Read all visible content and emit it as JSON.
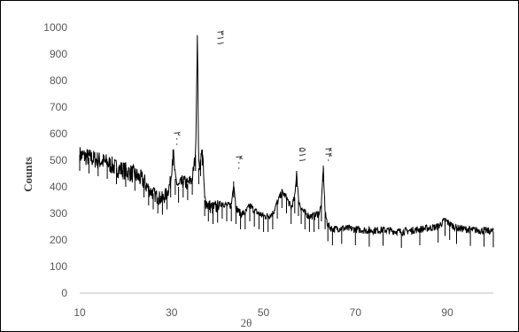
{
  "chart_data": {
    "type": "line",
    "title": "",
    "xlabel": "2θ",
    "ylabel": "Counts",
    "xlim": [
      10,
      100
    ],
    "ylim": [
      0,
      1000
    ],
    "xticks": [
      10,
      30,
      50,
      70,
      90
    ],
    "yticks": [
      0,
      100,
      200,
      300,
      400,
      500,
      600,
      700,
      800,
      900,
      1000
    ],
    "grid": false,
    "legend": "none",
    "line_color": "#000000",
    "series": [
      {
        "name": "",
        "x": [
          10,
          12,
          14,
          16,
          18,
          20,
          22,
          24,
          25,
          26,
          27,
          28,
          29,
          29.8,
          30.3,
          30.8,
          31.5,
          32.5,
          33.5,
          34.5,
          35.2,
          35.6,
          35.9,
          36.3,
          36.7,
          37.2,
          38,
          39,
          40,
          41,
          42,
          43,
          43.5,
          44,
          45,
          46,
          47,
          48,
          49,
          50,
          51,
          52,
          53,
          54,
          55,
          56,
          56.8,
          57.2,
          57.6,
          58.2,
          59,
          60,
          61,
          62,
          62.6,
          63,
          63.4,
          64,
          65,
          67,
          70,
          73,
          76,
          80,
          84,
          88,
          89.5,
          90.5,
          92,
          95,
          98,
          100
        ],
        "y": [
          520,
          510,
          500,
          490,
          470,
          460,
          445,
          420,
          390,
          375,
          360,
          355,
          375,
          420,
          540,
          430,
          400,
          420,
          410,
          430,
          520,
          960,
          470,
          500,
          540,
          350,
          330,
          320,
          325,
          340,
          330,
          330,
          420,
          320,
          300,
          300,
          330,
          310,
          300,
          290,
          290,
          300,
          340,
          380,
          360,
          320,
          360,
          460,
          350,
          320,
          300,
          290,
          290,
          300,
          330,
          480,
          300,
          255,
          240,
          245,
          240,
          235,
          238,
          230,
          240,
          250,
          275,
          260,
          245,
          238,
          235,
          232
        ]
      }
    ],
    "annotations": [
      {
        "text": "۲۰۰",
        "x": 30.5,
        "y": 580
      },
      {
        "text": "۳۱۱",
        "x": 40.0,
        "y": 960
      },
      {
        "text": "۴۰۰",
        "x": 44.0,
        "y": 490
      },
      {
        "text": "۵۱۱",
        "x": 57.8,
        "y": 520
      },
      {
        "text": "۴۴۰",
        "x": 63.5,
        "y": 520
      }
    ]
  }
}
